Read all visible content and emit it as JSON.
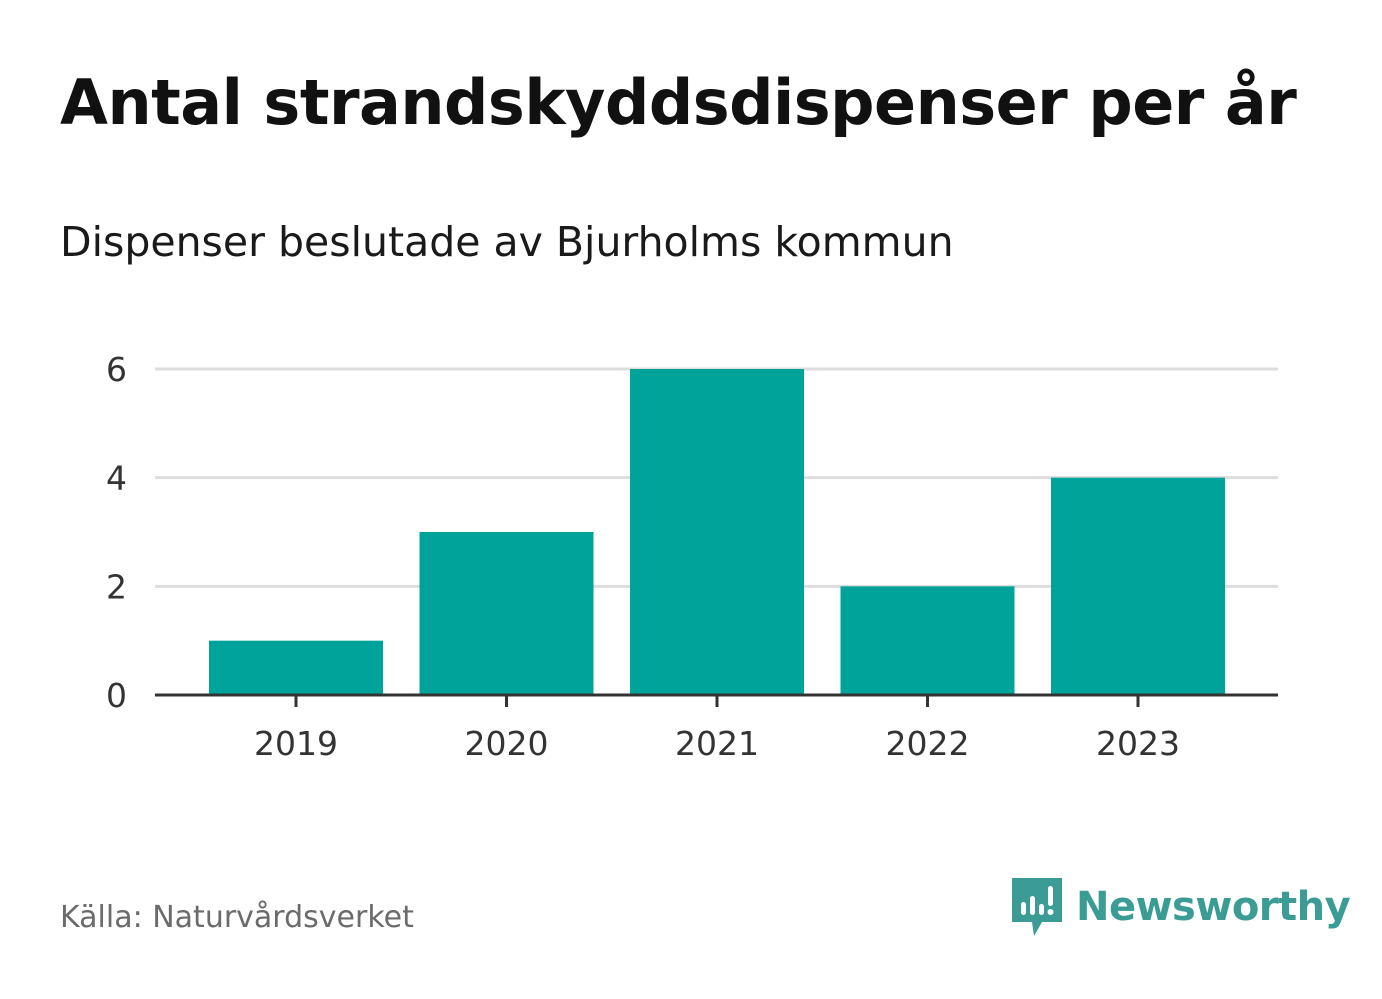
{
  "title": "Antal strandskyddsdispenser per år",
  "subtitle": "Dispenser beslutade av Bjurholms kommun",
  "source": "Källa: Naturvårdsverket",
  "brand": {
    "name": "Newsworthy",
    "icon": "newsworthy-logo-icon",
    "color": "#3a9c94"
  },
  "colors": {
    "bar": "#00a39a",
    "grid": "#dddddd",
    "axis": "#333333",
    "tick_text": "#333333"
  },
  "chart_data": {
    "type": "bar",
    "title": "Antal strandskyddsdispenser per år",
    "subtitle": "Dispenser beslutade av Bjurholms kommun",
    "xlabel": "",
    "ylabel": "",
    "categories": [
      "2019",
      "2020",
      "2021",
      "2022",
      "2023"
    ],
    "values": [
      1,
      3,
      6,
      2,
      4
    ],
    "ylim": [
      0,
      6
    ],
    "yticks": [
      0,
      2,
      4,
      6
    ],
    "grid": true,
    "legend": "none"
  }
}
